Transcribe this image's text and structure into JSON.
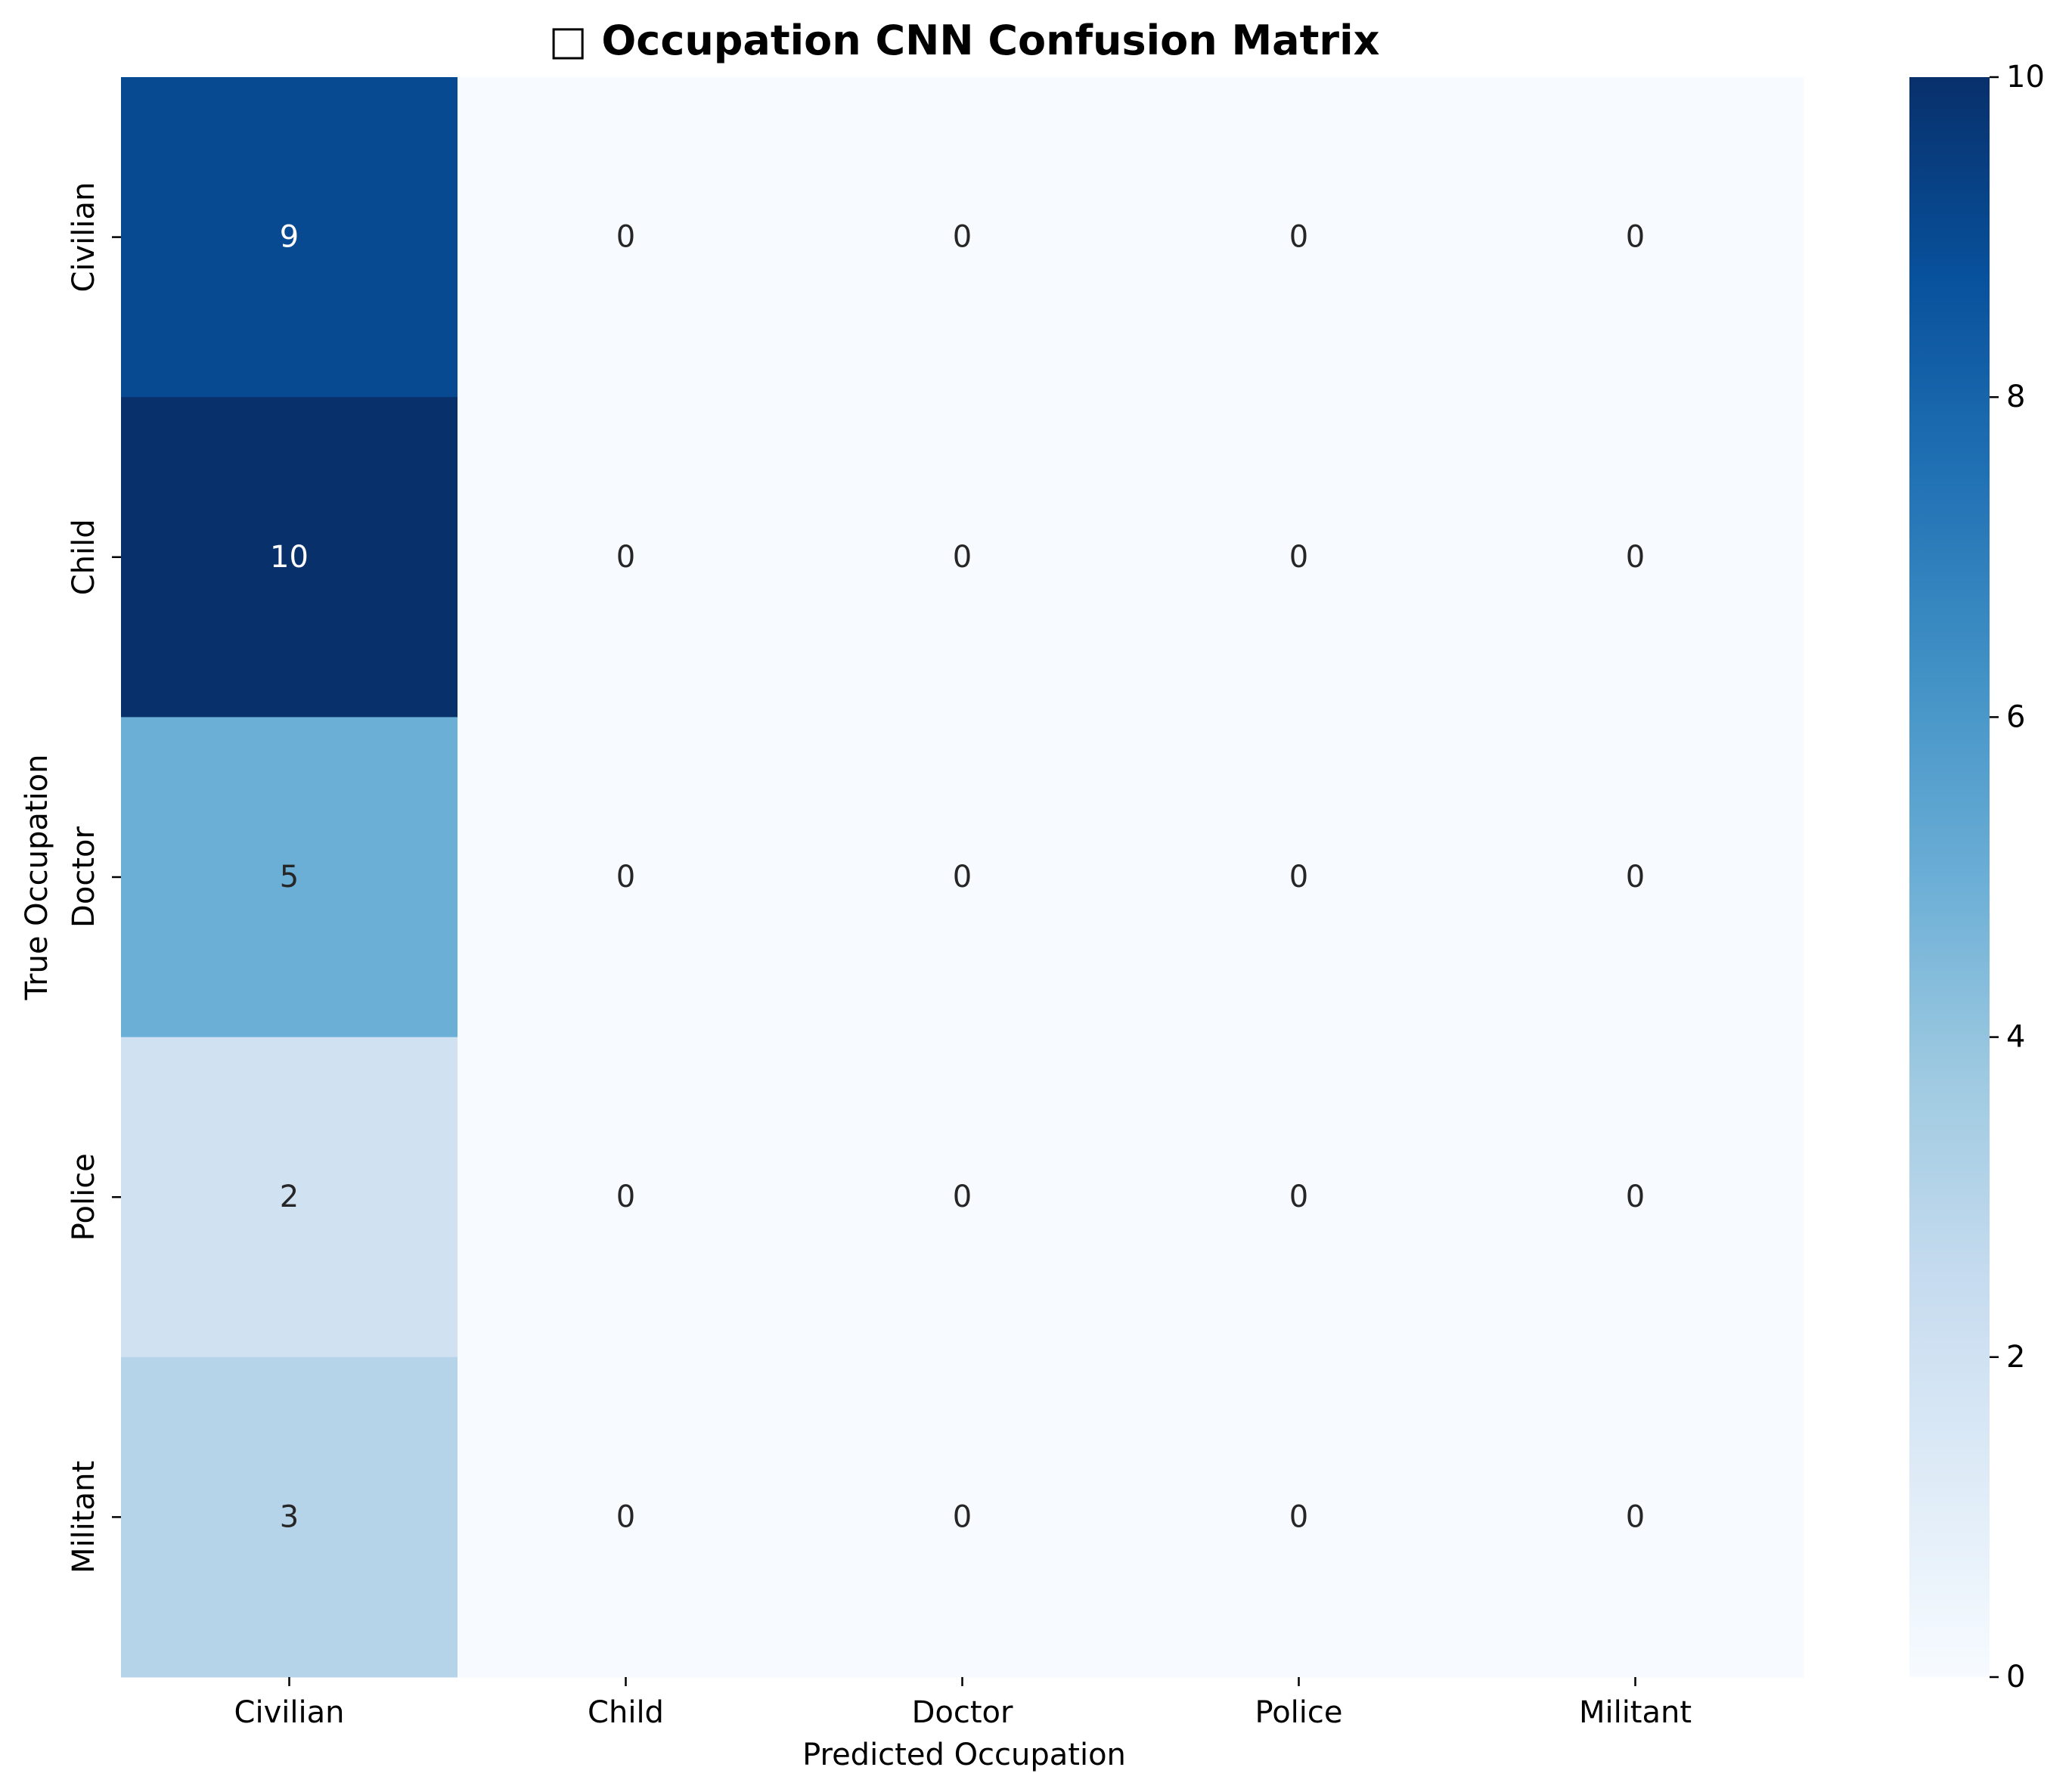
{
  "chart_data": {
    "type": "heatmap",
    "title": "□ Occupation CNN Confusion Matrix",
    "xlabel": "Predicted Occupation",
    "ylabel": "True Occupation",
    "x_categories": [
      "Civilian",
      "Child",
      "Doctor",
      "Police",
      "Militant"
    ],
    "y_categories": [
      "Civilian",
      "Child",
      "Doctor",
      "Police",
      "Militant"
    ],
    "values": [
      [
        9,
        0,
        0,
        0,
        0
      ],
      [
        10,
        0,
        0,
        0,
        0
      ],
      [
        5,
        0,
        0,
        0,
        0
      ],
      [
        2,
        0,
        0,
        0,
        0
      ],
      [
        3,
        0,
        0,
        0,
        0
      ]
    ],
    "colorbar": {
      "min": 0,
      "max": 10,
      "ticks": [
        0,
        2,
        4,
        6,
        8,
        10
      ],
      "colormap": "Blues"
    },
    "colors": {
      "low": "#f7fbff",
      "high": "#08306b"
    }
  }
}
